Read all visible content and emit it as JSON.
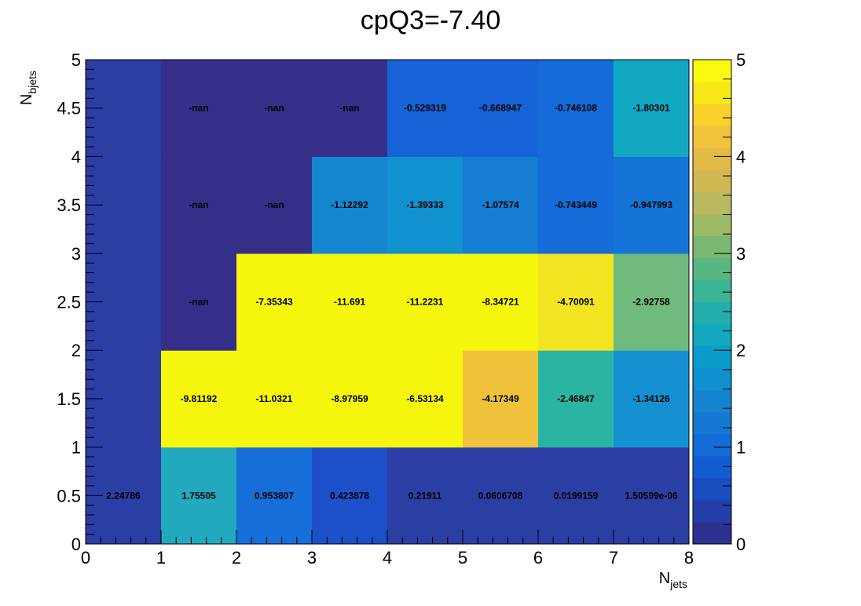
{
  "chart_data": {
    "type": "heatmap",
    "title": "cpQ3=-7.40",
    "xlabel": {
      "main": "N",
      "sub": "jets"
    },
    "ylabel": {
      "main": "N",
      "sub": "bjets"
    },
    "xlim": [
      0,
      8
    ],
    "ylim": [
      0,
      5
    ],
    "zlim": [
      0,
      5
    ],
    "x_ticks": [
      "0",
      "1",
      "2",
      "3",
      "4",
      "5",
      "6",
      "7",
      "8"
    ],
    "y_ticks": [
      "0",
      "0.5",
      "1",
      "1.5",
      "2",
      "2.5",
      "3",
      "3.5",
      "4",
      "4.5",
      "5"
    ],
    "z_ticks": [
      "0",
      "1",
      "2",
      "3",
      "4",
      "5"
    ],
    "palette": [
      "#2c3090",
      "#243ea8",
      "#1a4dbf",
      "#145cd2",
      "#156bd8",
      "#1579d4",
      "#1584d0",
      "#1190cf",
      "#0b9ccb",
      "#12a7bd",
      "#22aeaa",
      "#3bb396",
      "#58b682",
      "#7bb873",
      "#9dba68",
      "#bbb95e",
      "#d1b952",
      "#e1bb45",
      "#f0c33a",
      "#f8d12a",
      "#f7e81a",
      "#f9f90f"
    ],
    "cells": [
      {
        "x": 0,
        "y": 0,
        "value": 2.24786,
        "label": "2.24786"
      },
      {
        "x": 1,
        "y": 0,
        "value": 1.75505,
        "label": "1.75505"
      },
      {
        "x": 2,
        "y": 0,
        "value": 0.953807,
        "label": "0.953807"
      },
      {
        "x": 3,
        "y": 0,
        "value": 0.423878,
        "label": "0.423878"
      },
      {
        "x": 4,
        "y": 0,
        "value": 0.21911,
        "label": "0.21911"
      },
      {
        "x": 5,
        "y": 0,
        "value": 0.0606708,
        "label": "0.0606708"
      },
      {
        "x": 6,
        "y": 0,
        "value": 0.0199159,
        "label": "0.0199159"
      },
      {
        "x": 7,
        "y": 0,
        "value": 1.50599e-06,
        "label": "1.50599e-06"
      },
      {
        "x": 1,
        "y": 1,
        "value": -9.81192,
        "label": "-9.81192"
      },
      {
        "x": 2,
        "y": 1,
        "value": -11.0321,
        "label": "-11.0321"
      },
      {
        "x": 3,
        "y": 1,
        "value": -8.97959,
        "label": "-8.97959"
      },
      {
        "x": 4,
        "y": 1,
        "value": -6.53134,
        "label": "-6.53134"
      },
      {
        "x": 5,
        "y": 1,
        "value": -4.17349,
        "label": "-4.17349"
      },
      {
        "x": 6,
        "y": 1,
        "value": -2.46847,
        "label": "-2.46847"
      },
      {
        "x": 7,
        "y": 1,
        "value": -1.34126,
        "label": "-1.34126"
      },
      {
        "x": 1,
        "y": 2,
        "value": null,
        "label": "-nan"
      },
      {
        "x": 2,
        "y": 2,
        "value": -7.35343,
        "label": "-7.35343"
      },
      {
        "x": 3,
        "y": 2,
        "value": -11.691,
        "label": "-11.691"
      },
      {
        "x": 4,
        "y": 2,
        "value": -11.2231,
        "label": "-11.2231"
      },
      {
        "x": 5,
        "y": 2,
        "value": -8.34721,
        "label": "-8.34721"
      },
      {
        "x": 6,
        "y": 2,
        "value": -4.70091,
        "label": "-4.70091"
      },
      {
        "x": 7,
        "y": 2,
        "value": -2.92758,
        "label": "-2.92758"
      },
      {
        "x": 1,
        "y": 3,
        "value": null,
        "label": "-nan"
      },
      {
        "x": 2,
        "y": 3,
        "value": null,
        "label": "-nan"
      },
      {
        "x": 3,
        "y": 3,
        "value": -1.12292,
        "label": "-1.12292"
      },
      {
        "x": 4,
        "y": 3,
        "value": -1.39333,
        "label": "-1.39333"
      },
      {
        "x": 5,
        "y": 3,
        "value": -1.07574,
        "label": "-1.07574"
      },
      {
        "x": 6,
        "y": 3,
        "value": -0.743449,
        "label": "-0.743449"
      },
      {
        "x": 7,
        "y": 3,
        "value": -0.947993,
        "label": "-0.947993"
      },
      {
        "x": 1,
        "y": 4,
        "value": null,
        "label": "-nan"
      },
      {
        "x": 2,
        "y": 4,
        "value": null,
        "label": "-nan"
      },
      {
        "x": 3,
        "y": 4,
        "value": null,
        "label": "-nan"
      },
      {
        "x": 4,
        "y": 4,
        "value": -0.529319,
        "label": "-0.529319"
      },
      {
        "x": 5,
        "y": 4,
        "value": -0.668947,
        "label": "-0.668947"
      },
      {
        "x": 6,
        "y": 4,
        "value": -0.746108,
        "label": "-0.746108"
      },
      {
        "x": 7,
        "y": 4,
        "value": -1.80301,
        "label": "-1.80301"
      }
    ],
    "cell_colors": [
      [
        "#2b3ea4",
        "#23a9bd",
        "#166fd8",
        "#1c4fc8",
        "#2b3ea4",
        "#2b3ea4",
        "#2b3ea4",
        "#2b3ea4"
      ],
      [
        "#2b3ea4",
        "#f7f60f",
        "#f7f60f",
        "#f7f60f",
        "#f7f60f",
        "#f0c23b",
        "#2ab5a3",
        "#1590d0"
      ],
      [
        "#2b3ea4",
        "#352f8a",
        "#f7f60f",
        "#f7f60f",
        "#f7f60f",
        "#f7f60f",
        "#f4e522",
        "#6fbb7e"
      ],
      [
        "#2b3ea4",
        "#352f8a",
        "#352f8a",
        "#1586d0",
        "#1191cf",
        "#157dd4",
        "#156bd8",
        "#1575d6"
      ],
      [
        "#2b3ea4",
        "#352f8a",
        "#352f8a",
        "#352f8a",
        "#1563d6",
        "#1563d6",
        "#156bd8",
        "#12a9c0"
      ]
    ]
  }
}
